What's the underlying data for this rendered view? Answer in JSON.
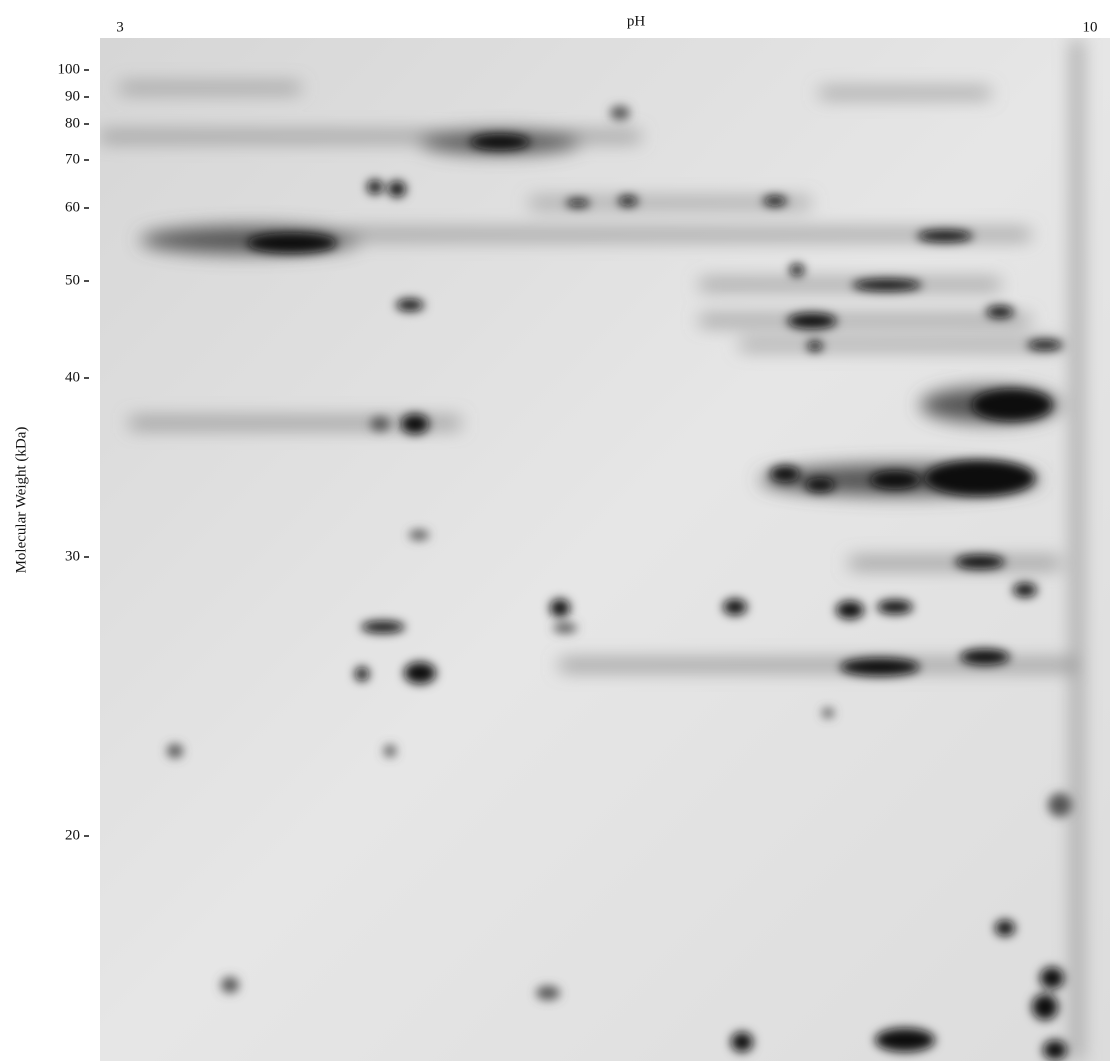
{
  "x_axis": {
    "label": "pH",
    "start_label": "3",
    "end_label": "10"
  },
  "y_axis": {
    "label": "Molecular Weight (kDa)",
    "ticks": [
      100,
      90,
      80,
      70,
      60,
      50,
      40,
      30,
      20
    ]
  }
}
